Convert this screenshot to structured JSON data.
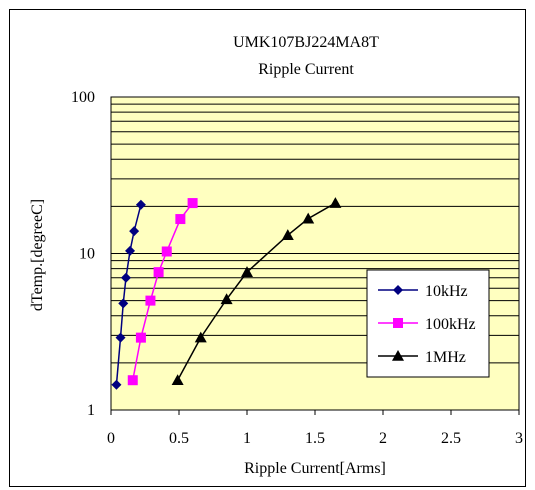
{
  "chart_data": {
    "type": "line",
    "title": "UMK107BJ224MA8T",
    "subtitle": "Ripple Current",
    "xlabel": "Ripple Current[Arms]",
    "ylabel": "dTemp.[degreeC]",
    "xlim": [
      0,
      3
    ],
    "ylim": [
      1,
      100
    ],
    "yscale": "log",
    "x_ticks": [
      "0",
      "0.5",
      "1",
      "1.5",
      "2",
      "2.5",
      "3"
    ],
    "y_ticks": [
      "1",
      "10",
      "100"
    ],
    "grid": true,
    "legend_position": "right-middle",
    "plot_background": "#ffffc0",
    "series": [
      {
        "name": "10kHz",
        "color": "#000080",
        "marker": "diamond",
        "points": [
          [
            0.04,
            1.45
          ],
          [
            0.07,
            2.9
          ],
          [
            0.09,
            4.8
          ],
          [
            0.11,
            7.0
          ],
          [
            0.14,
            10.4
          ],
          [
            0.17,
            13.9
          ],
          [
            0.22,
            20.5
          ]
        ]
      },
      {
        "name": "100kHz",
        "color": "#ff00ff",
        "marker": "square",
        "points": [
          [
            0.16,
            1.55
          ],
          [
            0.22,
            2.9
          ],
          [
            0.29,
            5.0
          ],
          [
            0.35,
            7.6
          ],
          [
            0.41,
            10.3
          ],
          [
            0.51,
            16.6
          ],
          [
            0.6,
            21.0
          ]
        ]
      },
      {
        "name": "1MHz",
        "color": "#000000",
        "marker": "triangle",
        "points": [
          [
            0.49,
            1.55
          ],
          [
            0.66,
            2.9
          ],
          [
            0.85,
            5.1
          ],
          [
            1.0,
            7.6
          ],
          [
            1.3,
            13.1
          ],
          [
            1.45,
            16.7
          ],
          [
            1.65,
            21.0
          ]
        ]
      }
    ]
  }
}
